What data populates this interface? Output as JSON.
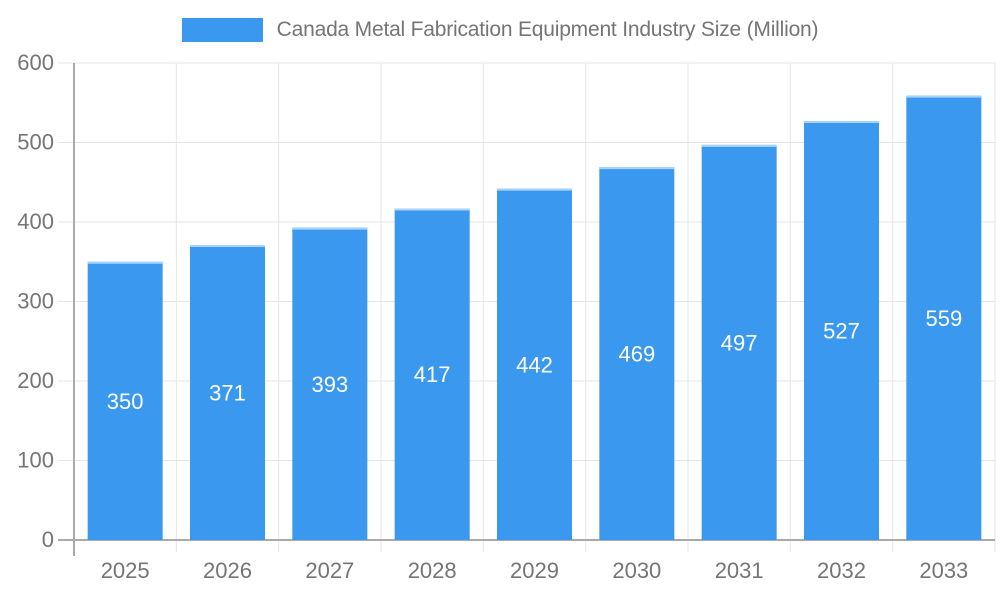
{
  "legend": {
    "label": "Canada Metal Fabrication Equipment Industry Size (Million)"
  },
  "chart_data": {
    "type": "bar",
    "title": "Canada Metal Fabrication Equipment Industry Size (Million)",
    "categories": [
      "2025",
      "2026",
      "2027",
      "2028",
      "2029",
      "2030",
      "2031",
      "2032",
      "2033"
    ],
    "values": [
      350,
      371,
      393,
      417,
      442,
      469,
      497,
      527,
      559
    ],
    "xlabel": "",
    "ylabel": "",
    "ylim": [
      0,
      600
    ],
    "y_tick_step": 100,
    "y_tick_labels": [
      "0",
      "100",
      "200",
      "300",
      "400",
      "500",
      "600"
    ],
    "grid": true,
    "legend_position": "top-center",
    "bar_labels_inside": true,
    "colors": {
      "bar": "#3a99ee",
      "bar_top_edge": "#a9d4f7",
      "bar_label": "#ffffff",
      "axis_text": "#757575",
      "grid_line": "#e6e6e6",
      "axis_line": "#aaaaaa",
      "background": "#ffffff"
    }
  }
}
